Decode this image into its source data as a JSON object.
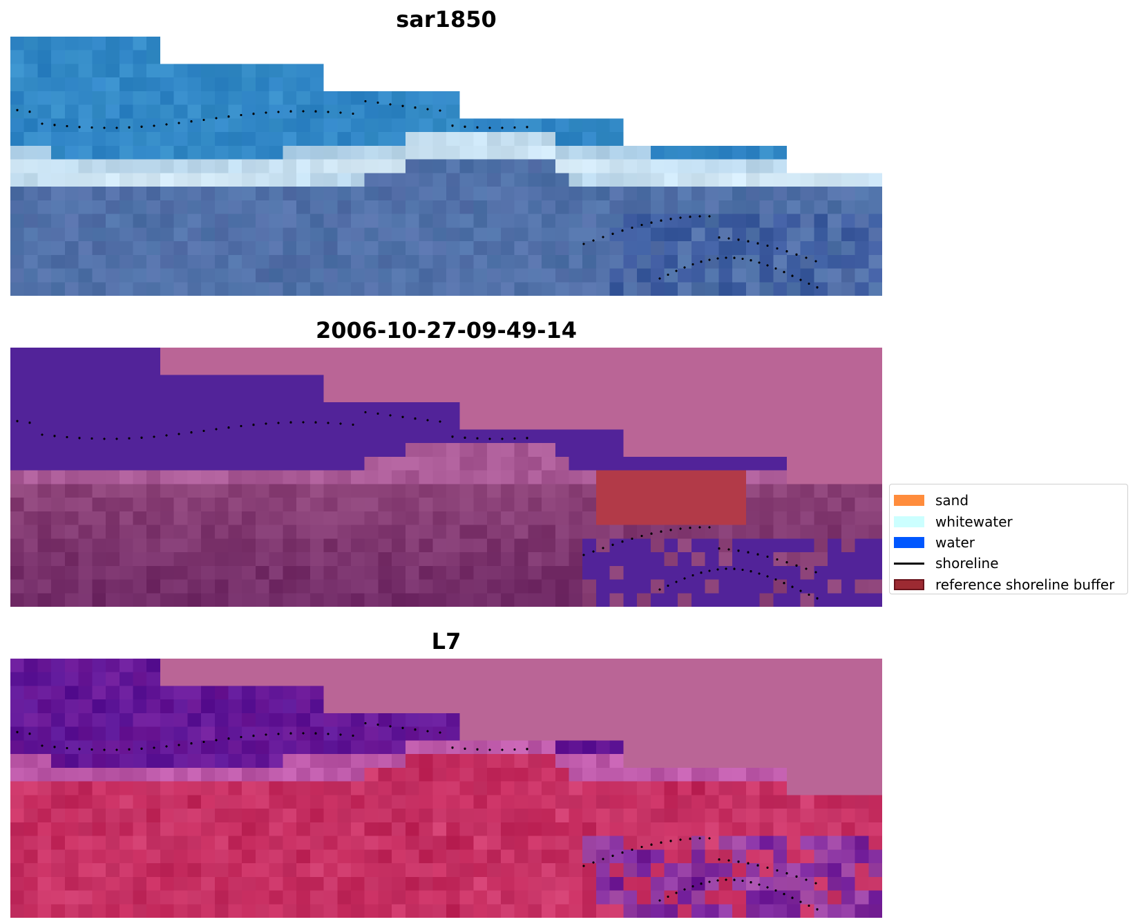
{
  "panels": [
    {
      "title": "sar1850"
    },
    {
      "title": "2006-10-27-09-49-14"
    },
    {
      "title": "L7"
    }
  ],
  "legend": {
    "items": [
      {
        "label": "sand",
        "color": "#ff8c3c",
        "kind": "patch"
      },
      {
        "label": "whitewater",
        "color": "#ccffff",
        "kind": "patch"
      },
      {
        "label": "water",
        "color": "#0057ff",
        "kind": "patch"
      },
      {
        "label": "shoreline",
        "color": "#000000",
        "kind": "line"
      },
      {
        "label": "reference shoreline buffer",
        "color": "#9c2a32",
        "kind": "patch"
      }
    ]
  },
  "colors": {
    "nodata": "#ba6596",
    "water_class": "#522399",
    "buffer": "#b23a48",
    "rgb_sky": "#2f84c6",
    "rgb_surf": "#d8ecf8",
    "rgb_deep": "#4e72a8",
    "l7_purple": "#6e1a98",
    "l7_red": "#c2275a"
  }
}
